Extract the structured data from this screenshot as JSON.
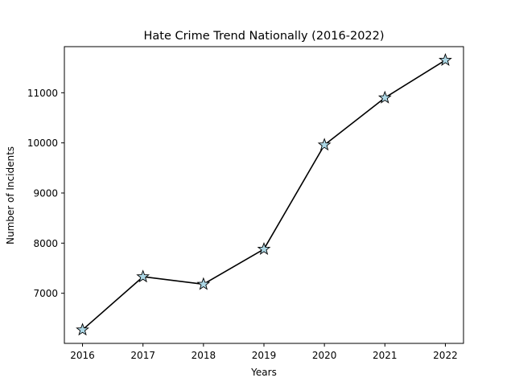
{
  "chart_data": {
    "type": "line",
    "title": "Hate Crime Trend Nationally (2016-2022)",
    "xlabel": "Years",
    "ylabel": "Number of Incidents",
    "x": [
      "2016",
      "2017",
      "2018",
      "2019",
      "2020",
      "2021",
      "2022"
    ],
    "series": [
      {
        "values": [
          6270,
          7330,
          7180,
          7880,
          9960,
          10900,
          11650
        ]
      }
    ],
    "xlim": [
      2015.7,
      2022.3
    ],
    "ylim": [
      6000,
      11920
    ],
    "yticks": [
      7000,
      8000,
      9000,
      10000,
      11000
    ],
    "line_color": "#000000",
    "marker": "star",
    "marker_fill": "#add8e6",
    "marker_edge": "#000000",
    "grid": false,
    "legend": "none"
  }
}
